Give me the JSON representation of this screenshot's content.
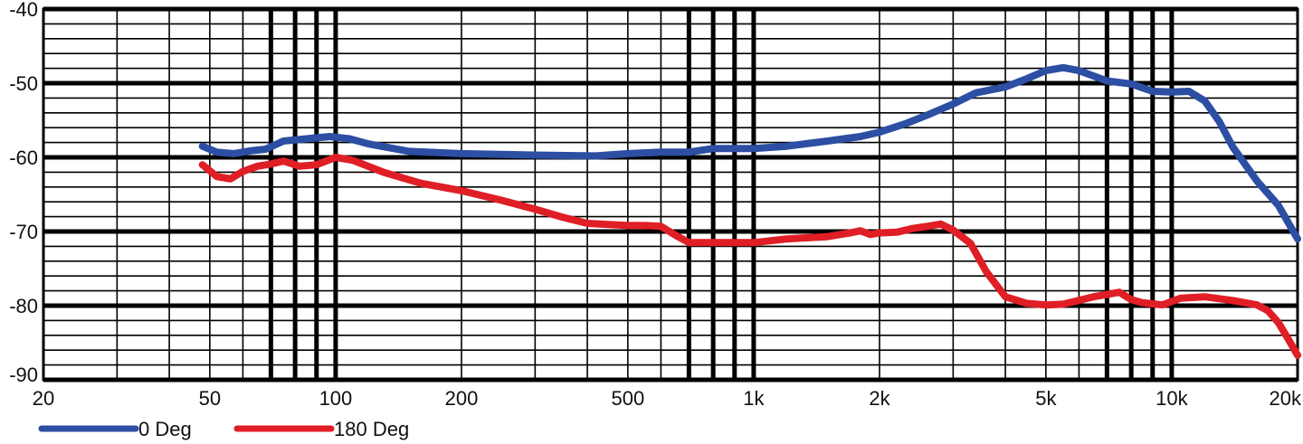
{
  "chart_data": {
    "type": "line",
    "title": "",
    "xlabel": "",
    "ylabel": "",
    "x_scale": "log",
    "xlim": [
      20,
      20000
    ],
    "ylim": [
      -90,
      -40
    ],
    "grid": true,
    "legend_position": "bottom-left",
    "y_ticks": [
      -40,
      -50,
      -60,
      -70,
      -80,
      -90
    ],
    "y_tick_labels": [
      "-40",
      "-50",
      "-60",
      "-70",
      "-80",
      "-90"
    ],
    "x_ticks": [
      20,
      50,
      100,
      200,
      500,
      1000,
      2000,
      5000,
      10000,
      20000
    ],
    "x_tick_labels": [
      "20",
      "50",
      "100",
      "200",
      "500",
      "1k",
      "2k",
      "5k",
      "10k",
      "20k"
    ],
    "series": [
      {
        "name": "0 Deg",
        "color": "#2c4ea3",
        "x": [
          48,
          52,
          57,
          63,
          68,
          75,
          85,
          97,
          108,
          120,
          150,
          200,
          300,
          420,
          500,
          600,
          700,
          800,
          900,
          1000,
          1200,
          1500,
          1800,
          2000,
          2300,
          2600,
          3000,
          3400,
          4000,
          4500,
          5000,
          5500,
          6000,
          7000,
          8000,
          9000,
          10000,
          11000,
          12000,
          13000,
          14000,
          16000,
          18000,
          20000
        ],
        "y": [
          -58.5,
          -59.3,
          -59.5,
          -59.1,
          -58.9,
          -57.8,
          -57.5,
          -57.2,
          -57.5,
          -58.2,
          -59.2,
          -59.5,
          -59.7,
          -59.8,
          -59.5,
          -59.3,
          -59.3,
          -58.8,
          -58.8,
          -58.8,
          -58.5,
          -57.8,
          -57.2,
          -56.6,
          -55.5,
          -54.3,
          -52.8,
          -51.3,
          -50.5,
          -49.4,
          -48.3,
          -47.9,
          -48.3,
          -49.7,
          -50.1,
          -51.1,
          -51.2,
          -51.1,
          -52.4,
          -55.2,
          -58.6,
          -63.2,
          -66.5,
          -71.0
        ]
      },
      {
        "name": "180 Deg",
        "color": "#e01e25",
        "x": [
          48,
          52,
          56,
          60,
          65,
          70,
          75,
          82,
          90,
          100,
          110,
          130,
          160,
          200,
          250,
          300,
          350,
          400,
          500,
          550,
          600,
          650,
          700,
          800,
          900,
          1000,
          1200,
          1500,
          1700,
          1800,
          1900,
          2000,
          2200,
          2400,
          2600,
          2800,
          3000,
          3300,
          3600,
          4000,
          4500,
          5000,
          5500,
          6500,
          7500,
          8000,
          8500,
          9500,
          10500,
          12000,
          14000,
          16000,
          17000,
          18000,
          19000,
          20000
        ],
        "y": [
          -61.0,
          -62.6,
          -62.9,
          -61.9,
          -61.2,
          -60.9,
          -60.5,
          -61.2,
          -61.0,
          -60.0,
          -60.4,
          -62.0,
          -63.5,
          -64.5,
          -65.8,
          -67.0,
          -68.1,
          -68.9,
          -69.2,
          -69.2,
          -69.3,
          -70.5,
          -71.5,
          -71.5,
          -71.5,
          -71.5,
          -71.0,
          -70.7,
          -70.2,
          -69.9,
          -70.4,
          -70.2,
          -70.1,
          -69.6,
          -69.3,
          -69.0,
          -69.8,
          -71.6,
          -75.4,
          -78.8,
          -79.7,
          -79.9,
          -79.8,
          -78.8,
          -78.2,
          -79.2,
          -79.6,
          -79.9,
          -79.0,
          -78.8,
          -79.3,
          -79.9,
          -80.7,
          -82.3,
          -84.5,
          -86.7
        ]
      }
    ]
  }
}
